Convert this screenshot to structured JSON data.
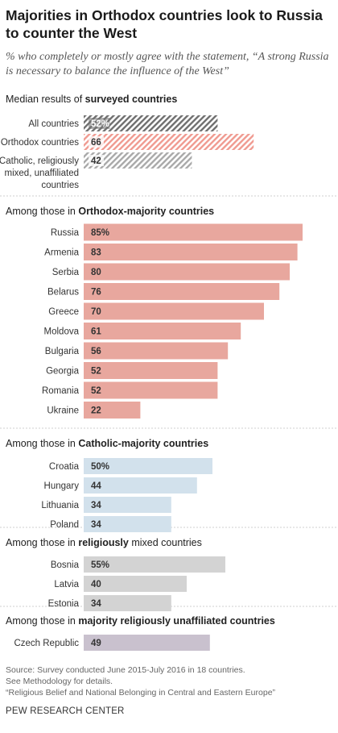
{
  "title": "Majorities in Orthodox countries look to Russia to counter the West",
  "subtitle": "% who completely or mostly agree with the statement, “A strong Russia is necessary to balance the influence of the West”",
  "source": {
    "line1": "Source: Survey conducted June 2015-July 2016 in 18 countries.",
    "line2": "See Methodology for details.",
    "line3": "“Religious Belief and National Belonging in Central and Eastern Europe”"
  },
  "organization": "PEW RESEARCH CENTER",
  "colors": {
    "orthodox": "#e8a79e",
    "catholic": "#d2e1ec",
    "mixed": "#d3d3d3",
    "unaffiliated": "#c9c1ce",
    "median_all_hatch": "#6f6f6f",
    "median_orthodox_hatch": "#f09a90",
    "median_other_hatch": "#a9a9a9",
    "separator": "#cfcfcf"
  },
  "chart_data": {
    "type": "bar",
    "orientation": "horizontal",
    "value_unit": "%",
    "sections": [
      {
        "heading_pre": "Median results of ",
        "heading_bold": "surveyed countries",
        "heading_post": "",
        "style": "hatched",
        "rows": [
          {
            "label": [
              "All countries"
            ],
            "value": 52,
            "display": "52%",
            "color_key": "median_all_hatch"
          },
          {
            "label": [
              "Orthodox countries"
            ],
            "value": 66,
            "display": "66",
            "color_key": "median_orthodox_hatch"
          },
          {
            "label": [
              "Catholic, religiously",
              "mixed, unaffiliated",
              "countries"
            ],
            "value": 42,
            "display": "42",
            "color_key": "median_other_hatch"
          }
        ]
      },
      {
        "heading_pre": "Among those in ",
        "heading_bold": "Orthodox-majority countries",
        "heading_post": "",
        "style": "solid",
        "rows": [
          {
            "label": [
              "Russia"
            ],
            "value": 85,
            "display": "85%",
            "color_key": "orthodox"
          },
          {
            "label": [
              "Armenia"
            ],
            "value": 83,
            "display": "83",
            "color_key": "orthodox"
          },
          {
            "label": [
              "Serbia"
            ],
            "value": 80,
            "display": "80",
            "color_key": "orthodox"
          },
          {
            "label": [
              "Belarus"
            ],
            "value": 76,
            "display": "76",
            "color_key": "orthodox"
          },
          {
            "label": [
              "Greece"
            ],
            "value": 70,
            "display": "70",
            "color_key": "orthodox"
          },
          {
            "label": [
              "Moldova"
            ],
            "value": 61,
            "display": "61",
            "color_key": "orthodox"
          },
          {
            "label": [
              "Bulgaria"
            ],
            "value": 56,
            "display": "56",
            "color_key": "orthodox"
          },
          {
            "label": [
              "Georgia"
            ],
            "value": 52,
            "display": "52",
            "color_key": "orthodox"
          },
          {
            "label": [
              "Romania"
            ],
            "value": 52,
            "display": "52",
            "color_key": "orthodox"
          },
          {
            "label": [
              "Ukraine"
            ],
            "value": 22,
            "display": "22",
            "color_key": "orthodox"
          }
        ]
      },
      {
        "heading_pre": "Among those in ",
        "heading_bold": "Catholic-majority countries",
        "heading_post": "",
        "style": "solid",
        "rows": [
          {
            "label": [
              "Croatia"
            ],
            "value": 50,
            "display": "50%",
            "color_key": "catholic"
          },
          {
            "label": [
              "Hungary"
            ],
            "value": 44,
            "display": "44",
            "color_key": "catholic"
          },
          {
            "label": [
              "Lithuania"
            ],
            "value": 34,
            "display": "34",
            "color_key": "catholic"
          },
          {
            "label": [
              "Poland"
            ],
            "value": 34,
            "display": "34",
            "color_key": "catholic"
          }
        ]
      },
      {
        "heading_pre": "Among those in ",
        "heading_bold": "religiously",
        "heading_post": " mixed countries",
        "style": "solid",
        "rows": [
          {
            "label": [
              "Bosnia"
            ],
            "value": 55,
            "display": "55%",
            "color_key": "mixed"
          },
          {
            "label": [
              "Latvia"
            ],
            "value": 40,
            "display": "40",
            "color_key": "mixed"
          },
          {
            "label": [
              "Estonia"
            ],
            "value": 34,
            "display": "34",
            "color_key": "mixed"
          }
        ]
      },
      {
        "heading_pre": "Among those in ",
        "heading_bold": "majority religiously unaffiliated countries",
        "heading_post": "",
        "style": "solid",
        "rows": [
          {
            "label": [
              "Czech Republic"
            ],
            "value": 49,
            "display": "49",
            "color_key": "unaffiliated"
          }
        ]
      }
    ]
  }
}
